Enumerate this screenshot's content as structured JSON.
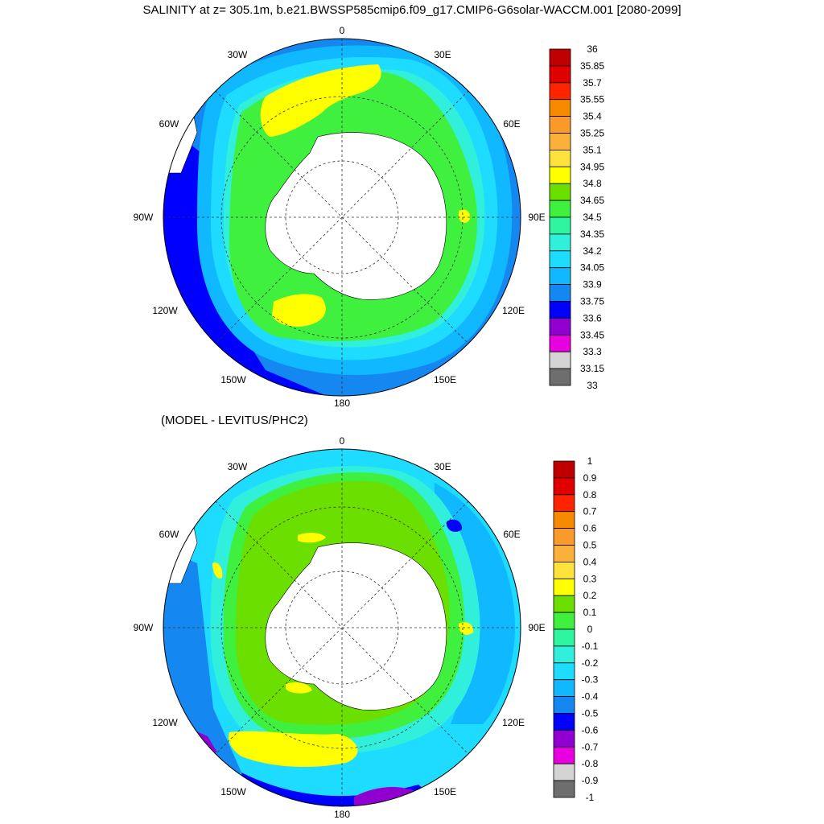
{
  "title": "SALINITY at z= 305.1m, b.e21.BWSSP585cmip6.f09_g17.CMIP6-G6solar-WACCM.001 [2080-2099]",
  "difference_title": "(MODEL - LEVITUS/PHC2)",
  "longitude_labels": [
    "0",
    "30E",
    "60E",
    "90E",
    "120E",
    "150E",
    "180",
    "150W",
    "120W",
    "90W",
    "60W",
    "30W"
  ],
  "panels": [
    {
      "id": "salinity",
      "colorbar": {
        "labels": [
          "36",
          "35.85",
          "35.7",
          "35.55",
          "35.4",
          "35.25",
          "35.1",
          "34.95",
          "34.8",
          "34.65",
          "34.5",
          "34.35",
          "34.2",
          "34.05",
          "33.9",
          "33.75",
          "33.6",
          "33.45",
          "33.3",
          "33.15",
          "33"
        ],
        "colors": [
          "#c00000",
          "#e00000",
          "#ff2400",
          "#f78a00",
          "#f99a2a",
          "#fbb03a",
          "#ffe23a",
          "#ffff00",
          "#6be000",
          "#3ff03f",
          "#2ef5a0",
          "#30f0dc",
          "#1edcff",
          "#10b8ff",
          "#1488f0",
          "#0000ff",
          "#9000d0",
          "#e800e0",
          "#d4d4d4",
          "#6e6e6e"
        ]
      }
    },
    {
      "id": "difference",
      "colorbar": {
        "labels": [
          "1",
          "0.9",
          "0.8",
          "0.7",
          "0.6",
          "0.5",
          "0.4",
          "0.3",
          "0.2",
          "0.1",
          "0",
          "-0.1",
          "-0.2",
          "-0.3",
          "-0.4",
          "-0.5",
          "-0.6",
          "-0.7",
          "-0.8",
          "-0.9",
          "-1"
        ],
        "colors": [
          "#c00000",
          "#e00000",
          "#ff2400",
          "#f78a00",
          "#f99a2a",
          "#fbb03a",
          "#ffe23a",
          "#ffff00",
          "#6be000",
          "#3ff03f",
          "#2ef5a0",
          "#30f0dc",
          "#1edcff",
          "#10b8ff",
          "#1488f0",
          "#0000ff",
          "#9000d0",
          "#e800e0",
          "#d4d4d4",
          "#6e6e6e"
        ]
      }
    }
  ]
}
